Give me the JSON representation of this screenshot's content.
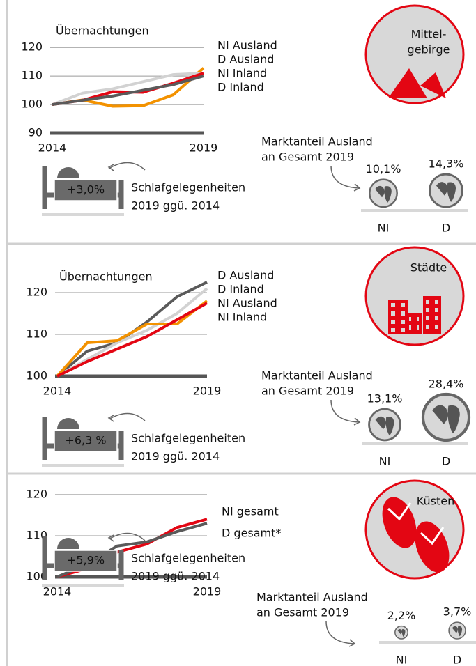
{
  "chart_data": [
    {
      "type": "line",
      "title": "Übernachtungen",
      "x": [
        2014,
        2015,
        2016,
        2017,
        2018,
        2019
      ],
      "xlim": [
        2014,
        2019
      ],
      "xticks": [
        2014,
        2019
      ],
      "ylim": [
        90,
        122
      ],
      "yticks": [
        90,
        100,
        110,
        120
      ],
      "series": [
        {
          "name": "NI Ausland",
          "color": "#f39200",
          "label_color": "#f39200",
          "values": [
            100,
            101.6,
            99.4,
            99.6,
            103.4,
            112.8
          ]
        },
        {
          "name": "D Ausland",
          "color": "#d2d2d2",
          "label_color": "#111111",
          "values": [
            100,
            104,
            105.5,
            108,
            110.5,
            111
          ]
        },
        {
          "name": "NI Inland",
          "color": "#e30613",
          "label_color": "#e30613",
          "values": [
            100,
            101.5,
            104.5,
            104.3,
            107.5,
            111
          ]
        },
        {
          "name": "D Inland",
          "color": "#5a5a5a",
          "label_color": "#111111",
          "values": [
            100,
            101.5,
            103,
            105,
            107,
            110
          ]
        }
      ],
      "badge": [
        "Mittel-",
        "gebirge"
      ],
      "beds": {
        "label": "+3,0%",
        "text": [
          "Schlafgelegenheiten",
          "2019 ggü. 2014"
        ]
      },
      "market_share": {
        "title": [
          "Marktanteil Ausland",
          "an Gesamt 2019"
        ],
        "categories": [
          "NI",
          "D"
        ],
        "values": [
          10.1,
          14.3
        ],
        "value_labels": [
          "10,1%",
          "14,3%"
        ]
      }
    },
    {
      "type": "line",
      "title": "Übernachtungen",
      "x": [
        2014,
        2015,
        2016,
        2017,
        2018,
        2019
      ],
      "xlim": [
        2014,
        2019
      ],
      "xticks": [
        2014,
        2019
      ],
      "ylim": [
        100,
        124
      ],
      "yticks": [
        100,
        110,
        120
      ],
      "series": [
        {
          "name": "D Ausland",
          "color": "#5a5a5a",
          "label_color": "#111111",
          "values": [
            100,
            106,
            108,
            113,
            119,
            122.5
          ]
        },
        {
          "name": "D Inland",
          "color": "#d2d2d2",
          "label_color": "#111111",
          "values": [
            100,
            104,
            108,
            111,
            115,
            121
          ]
        },
        {
          "name": "NI Ausland",
          "color": "#f39200",
          "label_color": "#f39200",
          "values": [
            100,
            108,
            108.5,
            112.5,
            112.5,
            118
          ]
        },
        {
          "name": "NI Inland",
          "color": "#e30613",
          "label_color": "#e30613",
          "values": [
            100,
            103.5,
            106.5,
            109.5,
            113.5,
            117.5
          ]
        }
      ],
      "badge": [
        "Städte"
      ],
      "beds": {
        "label": "+6,3 %",
        "text": [
          "Schlafgelegenheiten",
          "2019 ggü. 2014"
        ]
      },
      "market_share": {
        "title": [
          "Marktanteil Ausland",
          "an Gesamt 2019"
        ],
        "categories": [
          "NI",
          "D"
        ],
        "values": [
          13.1,
          28.4
        ],
        "value_labels": [
          "13,1%",
          "28,4%"
        ]
      }
    },
    {
      "type": "line",
      "x": [
        2014,
        2015,
        2016,
        2017,
        2018,
        2019
      ],
      "xlim": [
        2014,
        2019
      ],
      "xticks": [
        2014,
        2019
      ],
      "ylim": [
        100,
        121
      ],
      "yticks": [
        100,
        110,
        120
      ],
      "series": [
        {
          "name": "NI gesamt",
          "color": "#e30613",
          "label_color": "#e30613",
          "values": [
            100,
            102,
            106,
            108,
            112,
            114
          ]
        },
        {
          "name": "D gesamt*",
          "color": "#5a5a5a",
          "label_color": "#111111",
          "values": [
            100,
            103,
            107.5,
            108.5,
            111,
            113
          ]
        }
      ],
      "badge": [
        "Küsten"
      ],
      "beds": {
        "label": "+5,9%",
        "text": [
          "Schlafgelegenheiten",
          "2019 ggü. 2014"
        ]
      },
      "market_share": {
        "title": [
          "Marktanteil Ausland",
          "an Gesamt 2019"
        ],
        "categories": [
          "NI",
          "D"
        ],
        "values": [
          2.2,
          3.7
        ],
        "value_labels": [
          "2,2%",
          "3,7%"
        ]
      }
    }
  ]
}
